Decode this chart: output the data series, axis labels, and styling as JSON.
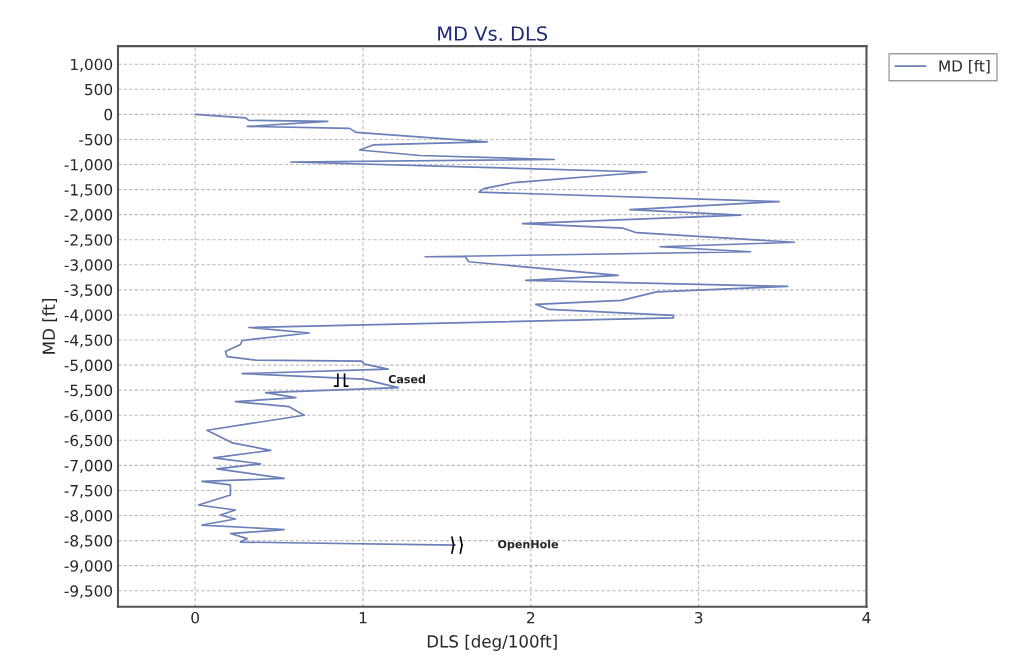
{
  "chart_data": {
    "type": "line",
    "title": "MD Vs. DLS",
    "xlabel": "DLS [deg/100ft]",
    "ylabel": "MD [ft]",
    "xlim": [
      -0.46,
      4
    ],
    "ylim": [
      -9820,
      1360
    ],
    "xticks": [
      0,
      1,
      2,
      3,
      4
    ],
    "yticks": [
      {
        "value": 1000,
        "label": "1,000"
      },
      500,
      0,
      -500,
      {
        "value": -1000,
        "label": "-1,000"
      },
      {
        "value": -1500,
        "label": "-1,500"
      },
      {
        "value": -2000,
        "label": "-2,000"
      },
      {
        "value": -2500,
        "label": "-2,500"
      },
      {
        "value": -3000,
        "label": "-3,000"
      },
      {
        "value": -3500,
        "label": "-3,500"
      },
      {
        "value": -4000,
        "label": "-4,000"
      },
      {
        "value": -4500,
        "label": "-4,500"
      },
      {
        "value": -5000,
        "label": "-5,000"
      },
      {
        "value": -5500,
        "label": "-5,500"
      },
      {
        "value": -6000,
        "label": "-6,000"
      },
      {
        "value": -6500,
        "label": "-6,500"
      },
      {
        "value": -7000,
        "label": "-7,000"
      },
      {
        "value": -7500,
        "label": "-7,500"
      },
      {
        "value": -8000,
        "label": "-8,000"
      },
      {
        "value": -8500,
        "label": "-8,500"
      },
      {
        "value": -9000,
        "label": "-9,000"
      },
      {
        "value": -9500,
        "label": "-9,500"
      }
    ],
    "grid": true,
    "legend": "top right",
    "line_style": "solid",
    "marker": "none",
    "series": [
      {
        "name": "MD [ft]",
        "color": "#6b7fb8",
        "x": [
          0,
          0.3,
          0.32,
          0.79,
          0.31,
          0.92,
          0.96,
          1.74,
          1.06,
          0.98,
          1.34,
          2.14,
          0.57,
          2.69,
          1.9,
          1.72,
          1.69,
          3.48,
          2.59,
          3.25,
          1.95,
          2.55,
          2.63,
          3.57,
          2.77,
          3.31,
          1.37,
          1.61,
          1.63,
          2.52,
          1.97,
          3.53,
          2.75,
          2.54,
          2.03,
          2.11,
          2.85,
          2.85,
          0.32,
          0.68,
          0.28,
          0.27,
          0.18,
          0.19,
          0.36,
          0.99,
          1.01,
          1.15,
          0.28,
          1.0,
          1.21,
          0.42,
          0.6,
          0.24,
          0.56,
          0.65,
          0.07,
          0.22,
          0.45,
          0.11,
          0.39,
          0.13,
          0.53,
          0.04,
          0.21,
          0.21,
          0.02,
          0.24,
          0.15,
          0.24,
          0.04,
          0.53,
          0.21,
          0.31,
          0.27,
          1.55
        ],
        "values": [
          0,
          -70,
          -120,
          -140,
          -240,
          -280,
          -360,
          -550,
          -610,
          -710,
          -820,
          -900,
          -950,
          -1150,
          -1360,
          -1480,
          -1550,
          -1740,
          -1900,
          -2010,
          -2180,
          -2270,
          -2360,
          -2550,
          -2640,
          -2740,
          -2840,
          -2840,
          -2940,
          -3210,
          -3310,
          -3430,
          -3540,
          -3710,
          -3790,
          -3890,
          -4010,
          -4060,
          -4250,
          -4360,
          -4510,
          -4590,
          -4730,
          -4830,
          -4900,
          -4920,
          -4980,
          -5080,
          -5170,
          -5280,
          -5450,
          -5550,
          -5650,
          -5730,
          -5830,
          -6000,
          -6300,
          -6550,
          -6700,
          -6850,
          -6970,
          -7070,
          -7260,
          -7320,
          -7390,
          -7590,
          -7790,
          -7890,
          -7990,
          -8070,
          -8190,
          -8280,
          -8360,
          -8460,
          -8530,
          -8590
        ]
      }
    ],
    "annotations": [
      {
        "text": "Cased",
        "x": 1.15,
        "y": -5300
      },
      "OpenHole"
    ]
  }
}
